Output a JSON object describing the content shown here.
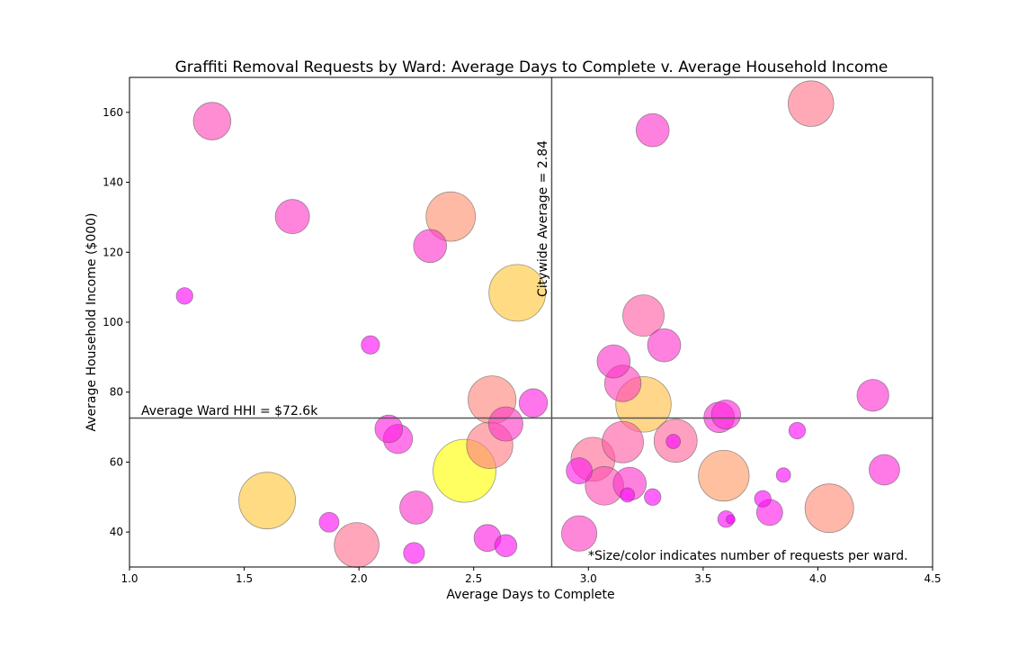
{
  "chart_data": {
    "type": "scatter",
    "title": "Graffiti Removal Requests by Ward: Average Days to Complete v. Average Household Income",
    "xlabel": "Average Days to Complete",
    "ylabel": "Average Household Income ($000)",
    "xlim": [
      1.0,
      4.5
    ],
    "ylim": [
      30,
      170
    ],
    "xticks": [
      1.0,
      1.5,
      2.0,
      2.5,
      3.0,
      3.5,
      4.0,
      4.5
    ],
    "xtick_labels": [
      "1.0",
      "1.5",
      "2.0",
      "2.5",
      "3.0",
      "3.5",
      "4.0",
      "4.5"
    ],
    "yticks": [
      40,
      60,
      80,
      100,
      120,
      140,
      160
    ],
    "ytick_labels": [
      "40",
      "60",
      "80",
      "100",
      "120",
      "140",
      "160"
    ],
    "grid": false,
    "vline": {
      "x": 2.84,
      "label": "Citywide Average = 2.84"
    },
    "hline": {
      "y": 72.6,
      "label": "Average Ward HHI = $72.6k"
    },
    "footnote": "*Size/color indicates number of requests per ward.",
    "colors": {
      "low": "#ff00ff",
      "high": "#ffff00",
      "edge": "#555555",
      "line": "#555555"
    },
    "points": [
      {
        "x": 1.24,
        "y": 107.5,
        "size": 0.02
      },
      {
        "x": 1.36,
        "y": 157.5,
        "size": 0.28
      },
      {
        "x": 1.6,
        "y": 49.0,
        "size": 0.78
      },
      {
        "x": 1.71,
        "y": 130.2,
        "size": 0.22
      },
      {
        "x": 1.87,
        "y": 42.8,
        "size": 0.04
      },
      {
        "x": 1.99,
        "y": 36.3,
        "size": 0.44
      },
      {
        "x": 2.05,
        "y": 93.5,
        "size": 0.03
      },
      {
        "x": 2.13,
        "y": 69.5,
        "size": 0.12
      },
      {
        "x": 2.17,
        "y": 66.6,
        "size": 0.14
      },
      {
        "x": 2.24,
        "y": 34.0,
        "size": 0.05
      },
      {
        "x": 2.25,
        "y": 47.0,
        "size": 0.2
      },
      {
        "x": 2.31,
        "y": 121.8,
        "size": 0.2
      },
      {
        "x": 2.4,
        "y": 130.2,
        "size": 0.56
      },
      {
        "x": 2.46,
        "y": 57.5,
        "size": 1.0
      },
      {
        "x": 2.56,
        "y": 38.3,
        "size": 0.11
      },
      {
        "x": 2.57,
        "y": 64.8,
        "size": 0.48
      },
      {
        "x": 2.58,
        "y": 77.8,
        "size": 0.52
      },
      {
        "x": 2.64,
        "y": 36.1,
        "size": 0.06
      },
      {
        "x": 2.64,
        "y": 70.9,
        "size": 0.22
      },
      {
        "x": 2.69,
        "y": 108.4,
        "size": 0.78
      },
      {
        "x": 2.76,
        "y": 76.9,
        "size": 0.13
      },
      {
        "x": 2.96,
        "y": 57.5,
        "size": 0.1
      },
      {
        "x": 2.96,
        "y": 39.6,
        "size": 0.24
      },
      {
        "x": 3.02,
        "y": 60.8,
        "size": 0.42
      },
      {
        "x": 3.07,
        "y": 53.2,
        "size": 0.3
      },
      {
        "x": 3.11,
        "y": 88.8,
        "size": 0.2
      },
      {
        "x": 3.15,
        "y": 82.5,
        "size": 0.26
      },
      {
        "x": 3.15,
        "y": 65.7,
        "size": 0.36
      },
      {
        "x": 3.17,
        "y": 50.6,
        "size": 0.01
      },
      {
        "x": 3.18,
        "y": 53.8,
        "size": 0.2
      },
      {
        "x": 3.24,
        "y": 101.9,
        "size": 0.36
      },
      {
        "x": 3.24,
        "y": 76.5,
        "size": 0.74
      },
      {
        "x": 3.28,
        "y": 154.9,
        "size": 0.2
      },
      {
        "x": 3.28,
        "y": 50.0,
        "size": 0.02
      },
      {
        "x": 3.33,
        "y": 93.4,
        "size": 0.2
      },
      {
        "x": 3.37,
        "y": 65.9,
        "size": 0.01
      },
      {
        "x": 3.38,
        "y": 66.1,
        "size": 0.4
      },
      {
        "x": 3.57,
        "y": 72.8,
        "size": 0.16
      },
      {
        "x": 3.59,
        "y": 56.1,
        "size": 0.6
      },
      {
        "x": 3.6,
        "y": 43.7,
        "size": 0.02
      },
      {
        "x": 3.6,
        "y": 73.6,
        "size": 0.14
      },
      {
        "x": 3.62,
        "y": 43.6,
        "size": 0.0
      },
      {
        "x": 3.76,
        "y": 49.5,
        "size": 0.02
      },
      {
        "x": 3.79,
        "y": 45.6,
        "size": 0.1
      },
      {
        "x": 3.85,
        "y": 56.3,
        "size": 0.01
      },
      {
        "x": 3.91,
        "y": 69.0,
        "size": 0.02
      },
      {
        "x": 3.97,
        "y": 162.5,
        "size": 0.46
      },
      {
        "x": 4.05,
        "y": 46.8,
        "size": 0.54
      },
      {
        "x": 4.24,
        "y": 79.1,
        "size": 0.18
      },
      {
        "x": 4.29,
        "y": 57.8,
        "size": 0.16
      }
    ]
  }
}
